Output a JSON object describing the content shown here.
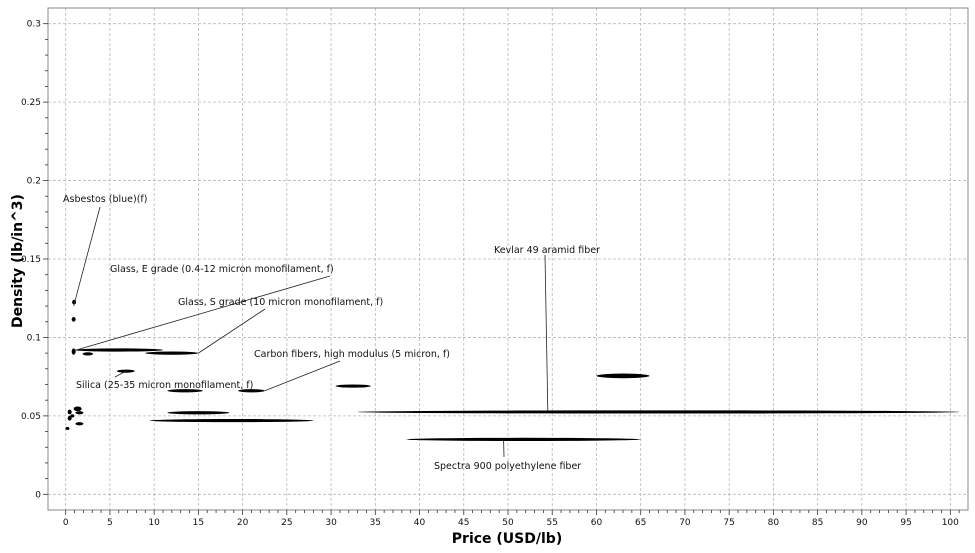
{
  "chart_data": {
    "type": "scatter",
    "title": "",
    "xlabel": "Price (USD/lb)",
    "ylabel": "Density (lb/in^3)",
    "xlim": [
      -2,
      102
    ],
    "ylim": [
      -0.01,
      0.31
    ],
    "x_ticks": [
      0,
      5,
      10,
      15,
      20,
      25,
      30,
      35,
      40,
      45,
      50,
      55,
      60,
      65,
      70,
      75,
      80,
      85,
      90,
      95,
      100
    ],
    "y_ticks": [
      0,
      0.05,
      0.1,
      0.15,
      0.2,
      0.25,
      0.3
    ],
    "x_tick_labels": [
      "0",
      "5",
      "10",
      "15",
      "20",
      "25",
      "30",
      "35",
      "40",
      "45",
      "50",
      "55",
      "60",
      "65",
      "70",
      "75",
      "80",
      "85",
      "90",
      "95",
      "100"
    ],
    "y_tick_labels": [
      "0",
      "0.05",
      "0.1",
      "0.15",
      "0.2",
      "0.25",
      "0.3"
    ],
    "grid": true,
    "legend": "none",
    "colors": {
      "marker": "#000000",
      "grid": "#b8b8b8",
      "frame": "#888888"
    },
    "points": [
      {
        "x_range": [
          0.9,
          1.0
        ],
        "y_range": [
          0.121,
          0.124
        ]
      },
      {
        "x_range": [
          0.8,
          1.0
        ],
        "y_range": [
          0.11,
          0.113
        ]
      },
      {
        "x_range": [
          0.7,
          1.1
        ],
        "y_range": [
          0.089,
          0.093
        ]
      },
      {
        "x_range": [
          1.0,
          11.0
        ],
        "y_range": [
          0.0915,
          0.0925
        ]
      },
      {
        "x_range": [
          1.9,
          3.1
        ],
        "y_range": [
          0.089,
          0.09
        ]
      },
      {
        "x_range": [
          9.0,
          15.0
        ],
        "y_range": [
          0.0895,
          0.0905
        ]
      },
      {
        "x_range": [
          5.8,
          7.8
        ],
        "y_range": [
          0.078,
          0.079
        ]
      },
      {
        "x_range": [
          11.5,
          15.5
        ],
        "y_range": [
          0.0655,
          0.0665
        ]
      },
      {
        "x_range": [
          19.5,
          22.5
        ],
        "y_range": [
          0.0655,
          0.0665
        ]
      },
      {
        "x_range": [
          30.5,
          34.5
        ],
        "y_range": [
          0.0685,
          0.0695
        ]
      },
      {
        "x_range": [
          60.0,
          66.0
        ],
        "y_range": [
          0.074,
          0.077
        ]
      },
      {
        "x_range": [
          11.5,
          18.5
        ],
        "y_range": [
          0.0515,
          0.0525
        ]
      },
      {
        "x_range": [
          33.0,
          101.0
        ],
        "y_range": [
          0.052,
          0.053
        ]
      },
      {
        "x_range": [
          9.5,
          28.0
        ],
        "y_range": [
          0.0465,
          0.0475
        ]
      },
      {
        "x_range": [
          38.5,
          65.0
        ],
        "y_range": [
          0.0345,
          0.0355
        ]
      },
      {
        "x_range": [
          0.3,
          0.6
        ],
        "y_range": [
          0.051,
          0.054
        ]
      },
      {
        "x_range": [
          0.3,
          0.6
        ],
        "y_range": [
          0.047,
          0.05
        ]
      },
      {
        "x_range": [
          0.1,
          0.3
        ],
        "y_range": [
          0.041,
          0.043
        ]
      },
      {
        "x_range": [
          0.9,
          1.8
        ],
        "y_range": [
          0.053,
          0.056
        ]
      },
      {
        "x_range": [
          1.1,
          2.0
        ],
        "y_range": [
          0.051,
          0.053
        ]
      },
      {
        "x_range": [
          1.1,
          2.0
        ],
        "y_range": [
          0.044,
          0.046
        ]
      },
      {
        "x_range": [
          0.6,
          0.9
        ],
        "y_range": [
          0.049,
          0.051
        ]
      }
    ],
    "annotations": [
      {
        "text": "Asbestos (blue)(f)",
        "point": [
          0.9,
          0.12
        ]
      },
      {
        "text": "Glass, E grade (0.4-12 micron monofilament, f)",
        "point": [
          1.2,
          0.092
        ]
      },
      {
        "text": "Glass, S grade (10 micron monofilament, f)",
        "point": [
          15.0,
          0.09
        ]
      },
      {
        "text": "Carbon fibers, high modulus (5 micron, f)",
        "point": [
          22.5,
          0.066
        ]
      },
      {
        "text": "Silica (25-35 micron monofilament, f)",
        "point": [
          6.8,
          0.0785
        ]
      },
      {
        "text": "Kevlar 49 aramid fiber",
        "point": [
          54.5,
          0.053
        ]
      },
      {
        "text": "Spectra 900 polyethylene fiber",
        "point": [
          49.5,
          0.035
        ]
      }
    ]
  }
}
